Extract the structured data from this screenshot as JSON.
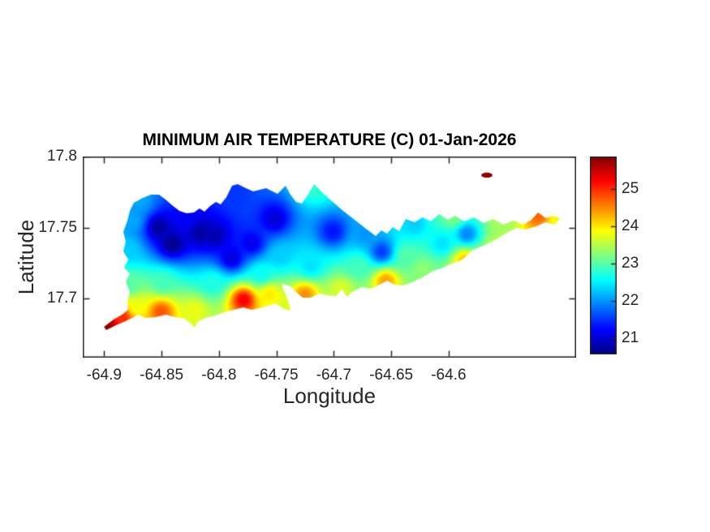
{
  "colors": {
    "background": "#ffffff",
    "axis": "#262626",
    "title": "#000000"
  },
  "chart_data": {
    "type": "filled-contour-map",
    "title": "MINIMUM AIR TEMPERATURE (C) 01-Jan-2026",
    "xlabel": "Longitude",
    "ylabel": "Latitude",
    "xlim": [
      -64.9186,
      -64.489
    ],
    "ylim": [
      17.6583,
      17.8
    ],
    "xticks": [
      -64.9,
      -64.85,
      -64.8,
      -64.75,
      -64.7,
      -64.65,
      -64.6
    ],
    "xtick_labels": [
      "-64.9",
      "-64.85",
      "-64.8",
      "-64.75",
      "-64.7",
      "-64.65",
      "-64.6"
    ],
    "yticks": [
      17.8,
      17.75,
      17.7
    ],
    "ytick_labels": [
      "17.8",
      "17.75",
      "17.7"
    ],
    "grid": false,
    "colormap": "jet",
    "legend": "none",
    "colorbar": {
      "position": "right",
      "vmin": 20.565,
      "vmax": 25.87,
      "ticks": [
        21,
        22,
        23,
        24,
        25
      ],
      "tick_labels": [
        "21",
        "22",
        "23",
        "24",
        "25"
      ]
    },
    "island_outline": [
      [
        -64.8741,
        17.7674
      ],
      [
        -64.8663,
        17.7709
      ],
      [
        -64.8592,
        17.7731
      ],
      [
        -64.8522,
        17.7731
      ],
      [
        -64.8465,
        17.7697
      ],
      [
        -64.8409,
        17.7657
      ],
      [
        -64.8345,
        17.7617
      ],
      [
        -64.8282,
        17.76
      ],
      [
        -64.8218,
        17.7606
      ],
      [
        -64.8169,
        17.7634
      ],
      [
        -64.8126,
        17.7611
      ],
      [
        -64.8077,
        17.7651
      ],
      [
        -64.8027,
        17.768
      ],
      [
        -64.7985,
        17.7663
      ],
      [
        -64.7935,
        17.7714
      ],
      [
        -64.7886,
        17.7794
      ],
      [
        -64.7837,
        17.7806
      ],
      [
        -64.778,
        17.7783
      ],
      [
        -64.7702,
        17.7754
      ],
      [
        -64.7589,
        17.7777
      ],
      [
        -64.749,
        17.7737
      ],
      [
        -64.742,
        17.7794
      ],
      [
        -64.7377,
        17.7731
      ],
      [
        -64.7328,
        17.768
      ],
      [
        -64.7278,
        17.7669
      ],
      [
        -64.7229,
        17.7726
      ],
      [
        -64.7172,
        17.7806
      ],
      [
        -64.7102,
        17.7749
      ],
      [
        -64.7017,
        17.7686
      ],
      [
        -64.6918,
        17.7617
      ],
      [
        -64.6819,
        17.7554
      ],
      [
        -64.672,
        17.7491
      ],
      [
        -64.6635,
        17.744
      ],
      [
        -64.6586,
        17.748
      ],
      [
        -64.6536,
        17.7457
      ],
      [
        -64.6487,
        17.7503
      ],
      [
        -64.643,
        17.7474
      ],
      [
        -64.6374,
        17.756
      ],
      [
        -64.6296,
        17.7537
      ],
      [
        -64.6226,
        17.7571
      ],
      [
        -64.6155,
        17.7543
      ],
      [
        -64.6084,
        17.7594
      ],
      [
        -64.6006,
        17.7554
      ],
      [
        -64.5943,
        17.7583
      ],
      [
        -64.5865,
        17.7543
      ],
      [
        -64.578,
        17.7571
      ],
      [
        -64.5696,
        17.7531
      ],
      [
        -64.5611,
        17.756
      ],
      [
        -64.5526,
        17.752
      ],
      [
        -64.5434,
        17.7549
      ],
      [
        -64.5349,
        17.752
      ],
      [
        -64.5279,
        17.7554
      ],
      [
        -64.5222,
        17.7606
      ],
      [
        -64.5152,
        17.7566
      ],
      [
        -64.5088,
        17.7583
      ],
      [
        -64.5031,
        17.7566
      ],
      [
        -64.5074,
        17.752
      ],
      [
        -64.5159,
        17.7537
      ],
      [
        -64.5236,
        17.7509
      ],
      [
        -64.5328,
        17.7486
      ],
      [
        -64.5413,
        17.7497
      ],
      [
        -64.5505,
        17.7457
      ],
      [
        -64.5597,
        17.7411
      ],
      [
        -64.5696,
        17.7371
      ],
      [
        -64.5787,
        17.7343
      ],
      [
        -64.5879,
        17.7274
      ],
      [
        -64.5971,
        17.7246
      ],
      [
        -64.6049,
        17.7217
      ],
      [
        -64.6134,
        17.7194
      ],
      [
        -64.6226,
        17.7149
      ],
      [
        -64.6317,
        17.7114
      ],
      [
        -64.6395,
        17.7091
      ],
      [
        -64.6473,
        17.7097
      ],
      [
        -64.6536,
        17.7126
      ],
      [
        -64.66,
        17.7097
      ],
      [
        -64.6678,
        17.7069
      ],
      [
        -64.6755,
        17.708
      ],
      [
        -64.684,
        17.7046
      ],
      [
        -64.6883,
        17.7011
      ],
      [
        -64.6932,
        17.7063
      ],
      [
        -64.6981,
        17.7017
      ],
      [
        -64.7059,
        17.7023
      ],
      [
        -64.713,
        17.7034
      ],
      [
        -64.7201,
        17.7006
      ],
      [
        -64.7271,
        17.7006
      ],
      [
        -64.7321,
        17.704
      ],
      [
        -64.7377,
        17.7086
      ],
      [
        -64.7455,
        17.7103
      ],
      [
        -64.7427,
        17.704
      ],
      [
        -64.7391,
        17.6971
      ],
      [
        -64.7377,
        17.6914
      ],
      [
        -64.7434,
        17.6926
      ],
      [
        -64.7504,
        17.6966
      ],
      [
        -64.7575,
        17.6949
      ],
      [
        -64.7646,
        17.6931
      ],
      [
        -64.7716,
        17.692
      ],
      [
        -64.7787,
        17.6937
      ],
      [
        -64.7872,
        17.692
      ],
      [
        -64.795,
        17.6903
      ],
      [
        -64.8034,
        17.688
      ],
      [
        -64.8119,
        17.6863
      ],
      [
        -64.819,
        17.6834
      ],
      [
        -64.8211,
        17.6794
      ],
      [
        -64.8246,
        17.6823
      ],
      [
        -64.8296,
        17.6857
      ],
      [
        -64.8381,
        17.6869
      ],
      [
        -64.8465,
        17.6886
      ],
      [
        -64.855,
        17.6869
      ],
      [
        -64.8635,
        17.6863
      ],
      [
        -64.8706,
        17.6886
      ],
      [
        -64.8741,
        17.6869
      ],
      [
        -64.8812,
        17.684
      ],
      [
        -64.8896,
        17.6811
      ],
      [
        -64.8981,
        17.6777
      ],
      [
        -64.9002,
        17.68
      ],
      [
        -64.8918,
        17.6851
      ],
      [
        -64.8833,
        17.6891
      ],
      [
        -64.879,
        17.6926
      ],
      [
        -64.8797,
        17.6977
      ],
      [
        -64.8776,
        17.7046
      ],
      [
        -64.8812,
        17.712
      ],
      [
        -64.8776,
        17.7171
      ],
      [
        -64.8826,
        17.7217
      ],
      [
        -64.879,
        17.7274
      ],
      [
        -64.8833,
        17.7331
      ],
      [
        -64.8812,
        17.74
      ],
      [
        -64.8833,
        17.7469
      ],
      [
        -64.8797,
        17.7549
      ],
      [
        -64.8776,
        17.7617
      ]
    ],
    "islet": {
      "center": [
        -64.5667,
        17.7869
      ],
      "rx_deg": 0.0049,
      "ry_deg": 0.0018,
      "value": 25.8
    },
    "stations": [
      [
        -64.8529,
        17.7503,
        20.7
      ],
      [
        -64.8409,
        17.7389,
        20.6
      ],
      [
        -64.8161,
        17.7463,
        20.7
      ],
      [
        -64.8034,
        17.7446,
        20.8
      ],
      [
        -64.7893,
        17.7286,
        21.0
      ],
      [
        -64.7519,
        17.756,
        21.0
      ],
      [
        -64.701,
        17.7474,
        21.3
      ],
      [
        -64.6586,
        17.7331,
        21.5
      ],
      [
        -64.5844,
        17.7457,
        21.9
      ],
      [
        -64.7716,
        17.7389,
        21.1
      ],
      [
        -64.8282,
        17.7571,
        21.2
      ],
      [
        -64.7858,
        17.7731,
        21.5
      ],
      [
        -64.6727,
        17.7457,
        22.0
      ],
      [
        -64.6303,
        17.7526,
        22.3
      ],
      [
        -64.6056,
        17.7389,
        22.4
      ],
      [
        -64.8691,
        17.7686,
        22.1
      ],
      [
        -64.879,
        17.7343,
        22.3
      ],
      [
        -64.8755,
        17.7549,
        22.1
      ],
      [
        -64.7469,
        17.7303,
        22.3
      ],
      [
        -64.7172,
        17.7777,
        22.8
      ],
      [
        -64.5964,
        17.7577,
        23.2
      ],
      [
        -64.5526,
        17.7537,
        23.4
      ],
      [
        -64.5222,
        17.7594,
        24.7
      ],
      [
        -64.5046,
        17.7566,
        23.8
      ],
      [
        -64.8967,
        17.6806,
        25.8
      ],
      [
        -64.8847,
        17.6869,
        25.0
      ],
      [
        -64.872,
        17.6943,
        23.8
      ],
      [
        -64.8508,
        17.6909,
        24.8
      ],
      [
        -64.8211,
        17.692,
        23.8
      ],
      [
        -64.7787,
        17.6994,
        25.3
      ],
      [
        -64.7561,
        17.7034,
        24.0
      ],
      [
        -64.7257,
        17.7029,
        24.5
      ],
      [
        -64.6939,
        17.7069,
        23.7
      ],
      [
        -64.6551,
        17.7126,
        24.4
      ],
      [
        -64.6233,
        17.7206,
        23.3
      ],
      [
        -64.5865,
        17.7269,
        24.2
      ],
      [
        -64.5583,
        17.7343,
        23.6
      ],
      [
        -64.8494,
        17.7114,
        22.9
      ],
      [
        -64.8056,
        17.7114,
        22.7
      ],
      [
        -64.7632,
        17.7171,
        22.6
      ],
      [
        -64.7208,
        17.7229,
        22.4
      ],
      [
        -64.6784,
        17.7229,
        22.9
      ],
      [
        -64.6374,
        17.7303,
        23.0
      ],
      [
        -64.8776,
        17.7091,
        23.0
      ],
      [
        -64.5667,
        17.7869,
        25.8
      ]
    ]
  }
}
